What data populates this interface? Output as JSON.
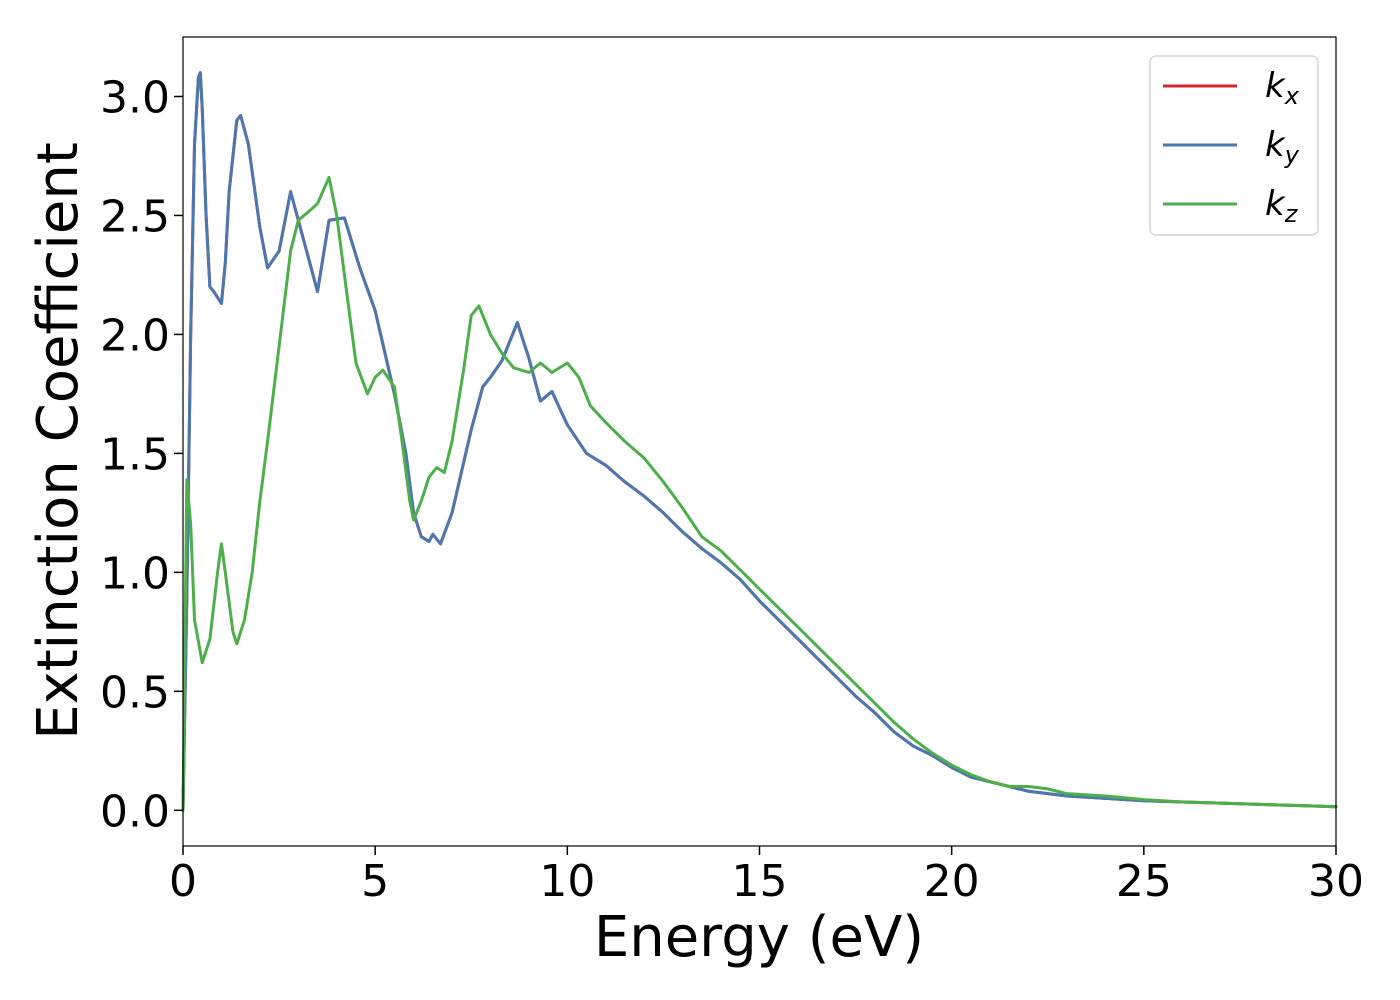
{
  "chart_data": {
    "type": "line",
    "title": "",
    "xlabel": "Energy (eV)",
    "ylabel": "Extinction Coefficient",
    "xlim": [
      0,
      30
    ],
    "ylim": [
      -0.15,
      3.25
    ],
    "xticks": [
      0,
      5,
      10,
      15,
      20,
      25,
      30
    ],
    "xtick_labels": [
      "0",
      "5",
      "10",
      "15",
      "20",
      "25",
      "30"
    ],
    "yticks": [
      0.0,
      0.5,
      1.0,
      1.5,
      2.0,
      2.5,
      3.0
    ],
    "ytick_labels": [
      "0.0",
      "0.5",
      "1.0",
      "1.5",
      "2.0",
      "2.5",
      "3.0"
    ],
    "grid": false,
    "legend_position": "top-right",
    "series": [
      {
        "name": "k_x",
        "label_base": "k",
        "label_sub": "x",
        "color": "#d62728",
        "x": [
          0,
          0.1,
          0.2,
          0.3,
          0.4,
          0.45,
          0.5,
          0.6,
          0.7,
          0.8,
          1.0,
          1.1,
          1.2,
          1.4,
          1.5,
          1.7,
          2.0,
          2.2,
          2.5,
          2.8,
          3.1,
          3.5,
          3.8,
          4.2,
          4.6,
          5.0,
          5.5,
          5.8,
          6.0,
          6.2,
          6.4,
          6.5,
          6.7,
          7.0,
          7.5,
          7.8,
          8.0,
          8.3,
          8.7,
          9.0,
          9.3,
          9.6,
          10.0,
          10.5,
          11.0,
          11.5,
          12.0,
          12.5,
          13.0,
          13.5,
          14.0,
          14.5,
          15.0,
          15.5,
          16.0,
          16.5,
          17.0,
          17.5,
          18.0,
          18.5,
          19.0,
          19.5,
          20.0,
          20.5,
          21.0,
          21.5,
          22.0,
          22.5,
          23.0,
          24.0,
          25.0,
          26.0,
          27.0,
          28.0,
          29.0,
          30.0
        ],
        "y": [
          0.0,
          0.9,
          2.0,
          2.8,
          3.08,
          3.1,
          2.95,
          2.5,
          2.2,
          2.18,
          2.13,
          2.3,
          2.6,
          2.9,
          2.92,
          2.8,
          2.45,
          2.28,
          2.35,
          2.6,
          2.42,
          2.18,
          2.48,
          2.49,
          2.28,
          2.1,
          1.75,
          1.5,
          1.25,
          1.15,
          1.13,
          1.16,
          1.12,
          1.25,
          1.6,
          1.78,
          1.82,
          1.89,
          2.05,
          1.9,
          1.72,
          1.76,
          1.62,
          1.5,
          1.45,
          1.38,
          1.32,
          1.25,
          1.17,
          1.1,
          1.04,
          0.97,
          0.88,
          0.8,
          0.72,
          0.64,
          0.56,
          0.48,
          0.41,
          0.33,
          0.27,
          0.23,
          0.18,
          0.14,
          0.12,
          0.1,
          0.08,
          0.07,
          0.06,
          0.05,
          0.04,
          0.035,
          0.03,
          0.025,
          0.02,
          0.015
        ]
      },
      {
        "name": "k_y",
        "label_base": "k",
        "label_sub": "y",
        "color": "#4a78b0",
        "x": [
          0,
          0.1,
          0.2,
          0.3,
          0.4,
          0.45,
          0.5,
          0.6,
          0.7,
          0.8,
          1.0,
          1.1,
          1.2,
          1.4,
          1.5,
          1.7,
          2.0,
          2.2,
          2.5,
          2.8,
          3.1,
          3.5,
          3.8,
          4.2,
          4.6,
          5.0,
          5.5,
          5.8,
          6.0,
          6.2,
          6.4,
          6.5,
          6.7,
          7.0,
          7.5,
          7.8,
          8.0,
          8.3,
          8.7,
          9.0,
          9.3,
          9.6,
          10.0,
          10.5,
          11.0,
          11.5,
          12.0,
          12.5,
          13.0,
          13.5,
          14.0,
          14.5,
          15.0,
          15.5,
          16.0,
          16.5,
          17.0,
          17.5,
          18.0,
          18.5,
          19.0,
          19.5,
          20.0,
          20.5,
          21.0,
          21.5,
          22.0,
          22.5,
          23.0,
          24.0,
          25.0,
          26.0,
          27.0,
          28.0,
          29.0,
          30.0
        ],
        "y": [
          0.0,
          0.9,
          2.0,
          2.8,
          3.08,
          3.1,
          2.95,
          2.5,
          2.2,
          2.18,
          2.13,
          2.3,
          2.6,
          2.9,
          2.92,
          2.8,
          2.45,
          2.28,
          2.35,
          2.6,
          2.42,
          2.18,
          2.48,
          2.49,
          2.28,
          2.1,
          1.75,
          1.5,
          1.25,
          1.15,
          1.13,
          1.16,
          1.12,
          1.25,
          1.6,
          1.78,
          1.82,
          1.89,
          2.05,
          1.9,
          1.72,
          1.76,
          1.62,
          1.5,
          1.45,
          1.38,
          1.32,
          1.25,
          1.17,
          1.1,
          1.04,
          0.97,
          0.88,
          0.8,
          0.72,
          0.64,
          0.56,
          0.48,
          0.41,
          0.33,
          0.27,
          0.23,
          0.18,
          0.14,
          0.12,
          0.1,
          0.08,
          0.07,
          0.06,
          0.05,
          0.04,
          0.035,
          0.03,
          0.025,
          0.02,
          0.015
        ]
      },
      {
        "name": "k_z",
        "label_base": "k",
        "label_sub": "z",
        "color": "#4daf4a",
        "x": [
          0,
          0.1,
          0.2,
          0.3,
          0.5,
          0.7,
          0.9,
          1.0,
          1.1,
          1.3,
          1.4,
          1.6,
          1.8,
          2.0,
          2.2,
          2.5,
          2.8,
          3.0,
          3.3,
          3.5,
          3.8,
          4.0,
          4.2,
          4.5,
          4.8,
          5.0,
          5.2,
          5.5,
          5.7,
          5.9,
          6.0,
          6.2,
          6.4,
          6.6,
          6.8,
          7.0,
          7.3,
          7.5,
          7.7,
          8.0,
          8.3,
          8.6,
          9.0,
          9.3,
          9.6,
          10.0,
          10.3,
          10.6,
          11.0,
          11.5,
          12.0,
          12.5,
          13.0,
          13.5,
          14.0,
          14.5,
          15.0,
          15.5,
          16.0,
          16.5,
          17.0,
          17.5,
          18.0,
          18.5,
          19.0,
          19.5,
          20.0,
          20.5,
          21.0,
          21.5,
          22.0,
          22.5,
          23.0,
          24.0,
          25.0,
          26.0,
          27.0,
          28.0,
          29.0,
          30.0
        ],
        "y": [
          0.0,
          1.39,
          1.2,
          0.8,
          0.62,
          0.72,
          1.0,
          1.12,
          1.0,
          0.75,
          0.7,
          0.8,
          1.0,
          1.3,
          1.55,
          1.95,
          2.35,
          2.48,
          2.52,
          2.55,
          2.66,
          2.5,
          2.25,
          1.88,
          1.75,
          1.82,
          1.85,
          1.78,
          1.55,
          1.3,
          1.22,
          1.3,
          1.4,
          1.44,
          1.42,
          1.55,
          1.85,
          2.08,
          2.12,
          2.0,
          1.92,
          1.86,
          1.84,
          1.88,
          1.84,
          1.88,
          1.82,
          1.7,
          1.63,
          1.55,
          1.48,
          1.38,
          1.27,
          1.15,
          1.09,
          1.01,
          0.93,
          0.85,
          0.77,
          0.69,
          0.61,
          0.53,
          0.45,
          0.37,
          0.3,
          0.24,
          0.19,
          0.15,
          0.12,
          0.1,
          0.1,
          0.09,
          0.07,
          0.06,
          0.045,
          0.035,
          0.03,
          0.025,
          0.02,
          0.015
        ]
      }
    ]
  }
}
